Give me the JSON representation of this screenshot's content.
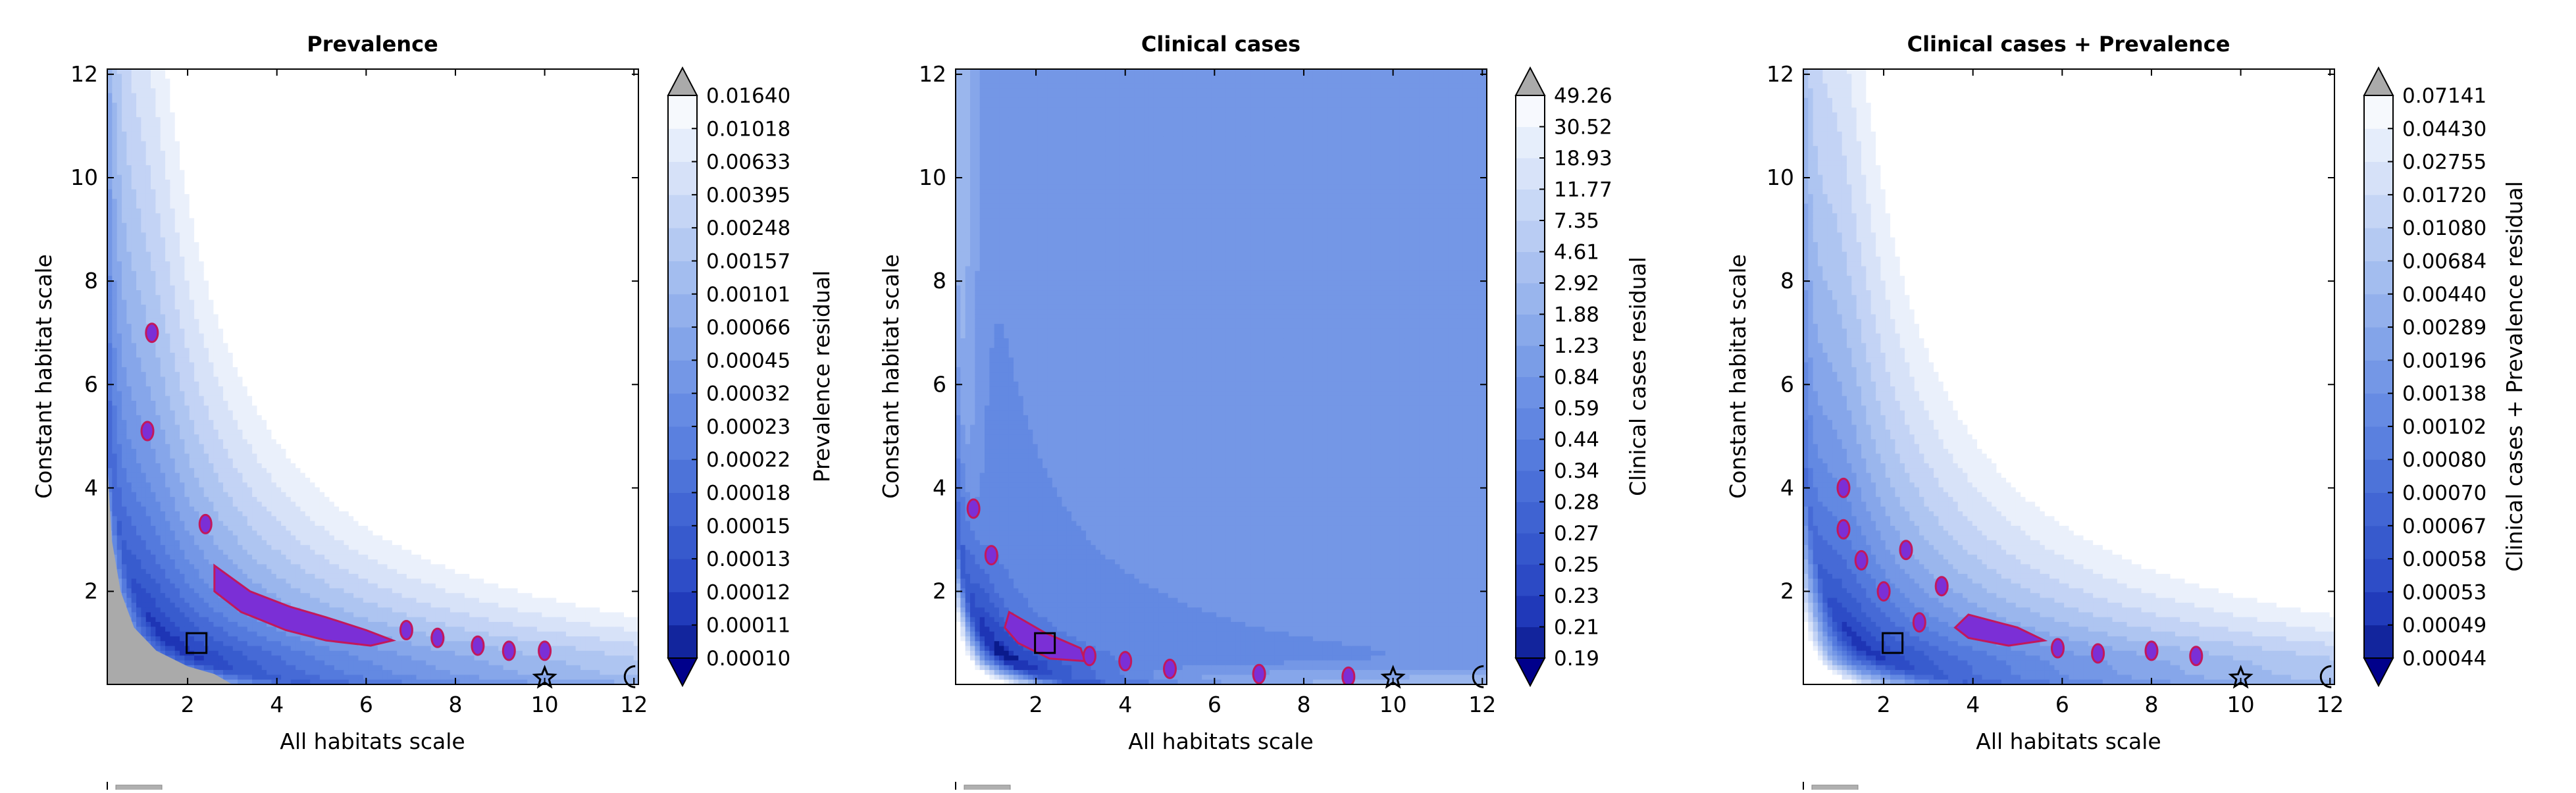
{
  "chart_data": [
    {
      "type": "heatmap",
      "title": "Prevalence",
      "xlabel": "All habitats scale",
      "ylabel": "Constant habitat scale",
      "xlim": [
        0.2,
        12.1
      ],
      "ylim": [
        0.2,
        12.1
      ],
      "xticks": [
        "2",
        "4",
        "6",
        "8",
        "10",
        "12"
      ],
      "yticks": [
        "2",
        "4",
        "6",
        "8",
        "10",
        "12"
      ],
      "colorbar_label": "Prevalence residual",
      "colorbar_levels": [
        "0.00010",
        "0.00011",
        "0.00012",
        "0.00013",
        "0.00015",
        "0.00018",
        "0.00022",
        "0.00023",
        "0.00032",
        "0.00045",
        "0.00066",
        "0.00101",
        "0.00157",
        "0.00248",
        "0.00395",
        "0.00633",
        "0.01018",
        "0.01640"
      ],
      "square_marker": {
        "x": 2.2,
        "y": 1.0
      },
      "star_marker": {
        "x": 10.0,
        "y": 0.35
      },
      "circle_marker": {
        "x": 12.0,
        "y": 0.35
      },
      "grey_region": true,
      "minimum_outline": [
        [
          2.6,
          2.5
        ],
        [
          3.4,
          2.0
        ],
        [
          4.3,
          1.7
        ],
        [
          5.1,
          1.5
        ],
        [
          6.0,
          1.25
        ],
        [
          6.6,
          1.05
        ],
        [
          6.1,
          0.95
        ],
        [
          5.1,
          1.05
        ],
        [
          4.2,
          1.25
        ],
        [
          3.2,
          1.6
        ],
        [
          2.6,
          2.0
        ]
      ],
      "minimum_blobs": [
        [
          1.2,
          7.0
        ],
        [
          1.1,
          5.1
        ],
        [
          2.4,
          3.3
        ],
        [
          6.9,
          1.25
        ],
        [
          7.6,
          1.1
        ],
        [
          8.5,
          0.95
        ],
        [
          9.2,
          0.85
        ],
        [
          10.0,
          0.85
        ]
      ]
    },
    {
      "type": "heatmap",
      "title": "Clinical cases",
      "xlabel": "All habitats scale",
      "ylabel": "Constant habitat scale",
      "xlim": [
        0.2,
        12.1
      ],
      "ylim": [
        0.2,
        12.1
      ],
      "xticks": [
        "2",
        "4",
        "6",
        "8",
        "10",
        "12"
      ],
      "yticks": [
        "2",
        "4",
        "6",
        "8",
        "10",
        "12"
      ],
      "colorbar_label": "Clinical cases residual",
      "colorbar_levels": [
        "0.19",
        "0.21",
        "0.23",
        "0.25",
        "0.27",
        "0.28",
        "0.34",
        "0.44",
        "0.59",
        "0.84",
        "1.23",
        "1.88",
        "2.92",
        "4.61",
        "7.35",
        "11.77",
        "18.93",
        "30.52",
        "49.26"
      ],
      "square_marker": {
        "x": 2.2,
        "y": 1.0
      },
      "star_marker": {
        "x": 10.0,
        "y": 0.35
      },
      "circle_marker": {
        "x": 12.0,
        "y": 0.35
      },
      "grey_region": false,
      "minimum_outline": [
        [
          1.4,
          1.6
        ],
        [
          2.2,
          1.2
        ],
        [
          3.0,
          0.9
        ],
        [
          3.1,
          0.65
        ],
        [
          2.3,
          0.7
        ],
        [
          1.6,
          1.0
        ],
        [
          1.3,
          1.3
        ]
      ],
      "minimum_blobs": [
        [
          0.6,
          3.6
        ],
        [
          1.0,
          2.7
        ],
        [
          3.2,
          0.75
        ],
        [
          4.0,
          0.65
        ],
        [
          5.0,
          0.5
        ],
        [
          7.0,
          0.4
        ],
        [
          9.0,
          0.35
        ]
      ]
    },
    {
      "type": "heatmap",
      "title": "Clinical cases + Prevalence",
      "xlabel": "All habitats scale",
      "ylabel": "Constant habitat scale",
      "xlim": [
        0.2,
        12.1
      ],
      "ylim": [
        0.2,
        12.1
      ],
      "xticks": [
        "2",
        "4",
        "6",
        "8",
        "10",
        "12"
      ],
      "yticks": [
        "2",
        "4",
        "6",
        "8",
        "10",
        "12"
      ],
      "colorbar_label": "Clinical cases + Prevalence residual",
      "colorbar_levels": [
        "0.00044",
        "0.00049",
        "0.00053",
        "0.00058",
        "0.00067",
        "0.00070",
        "0.00080",
        "0.00102",
        "0.00138",
        "0.00196",
        "0.00289",
        "0.00440",
        "0.00684",
        "0.01080",
        "0.01720",
        "0.02755",
        "0.04430",
        "0.07141"
      ],
      "square_marker": {
        "x": 2.2,
        "y": 1.0
      },
      "star_marker": {
        "x": 10.0,
        "y": 0.35
      },
      "circle_marker": {
        "x": 12.0,
        "y": 0.35
      },
      "grey_region": false,
      "minimum_outline": [
        [
          3.9,
          1.55
        ],
        [
          5.0,
          1.3
        ],
        [
          5.6,
          1.05
        ],
        [
          4.8,
          0.95
        ],
        [
          3.9,
          1.1
        ],
        [
          3.6,
          1.3
        ]
      ],
      "minimum_blobs": [
        [
          1.1,
          4.0
        ],
        [
          1.1,
          3.2
        ],
        [
          1.5,
          2.6
        ],
        [
          2.5,
          2.8
        ],
        [
          2.0,
          2.0
        ],
        [
          2.8,
          1.4
        ],
        [
          3.3,
          2.1
        ],
        [
          5.9,
          0.9
        ],
        [
          6.8,
          0.8
        ],
        [
          8.0,
          0.85
        ],
        [
          9.0,
          0.75
        ]
      ]
    }
  ]
}
